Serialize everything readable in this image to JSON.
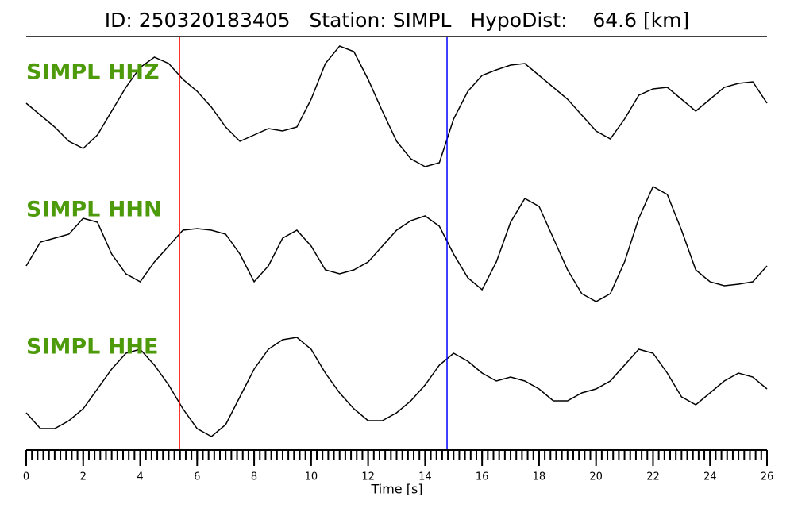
{
  "chart_data": {
    "type": "line",
    "title": "ID: 250320183405   Station: SIMPL   HypoDist:    64.6 [km]",
    "x_label": "Time [s]",
    "x": [
      0,
      0.5,
      1,
      1.5,
      2,
      2.5,
      3,
      3.5,
      4,
      4.5,
      5,
      5.5,
      6,
      6.5,
      7,
      7.5,
      8,
      8.5,
      9,
      9.5,
      10,
      10.5,
      11,
      11.5,
      12,
      12.5,
      13,
      13.5,
      14,
      14.5,
      15,
      15.5,
      16,
      16.5,
      17,
      17.5,
      18,
      18.5,
      19,
      19.5,
      20,
      20.5,
      21,
      21.5,
      22,
      22.5,
      23,
      23.5,
      24,
      24.5,
      25,
      25.5,
      26
    ],
    "series": [
      {
        "name": "SIMPL HHZ",
        "color": "#000000",
        "values": [
          7,
          -8,
          -23,
          -41,
          -50,
          -33,
          -3,
          27,
          52,
          65,
          57,
          37,
          22,
          2,
          -23,
          -41,
          -33,
          -25,
          -28,
          -23,
          12,
          57,
          79,
          72,
          37,
          -3,
          -41,
          -63,
          -73,
          -68,
          -13,
          22,
          42,
          49,
          55,
          57,
          42,
          27,
          12,
          -8,
          -28,
          -38,
          -13,
          17,
          25,
          27,
          12,
          -3,
          12,
          27,
          32,
          34,
          7
        ]
      },
      {
        "name": "SIMPL HHN",
        "color": "#000000",
        "values": [
          -25,
          5,
          10,
          15,
          35,
          30,
          -10,
          -35,
          -45,
          -20,
          0,
          20,
          22,
          20,
          15,
          -10,
          -45,
          -25,
          10,
          20,
          0,
          -30,
          -35,
          -30,
          -20,
          0,
          20,
          32,
          38,
          25,
          -10,
          -40,
          -55,
          -20,
          30,
          60,
          50,
          10,
          -30,
          -60,
          -70,
          -60,
          -20,
          35,
          75,
          65,
          20,
          -30,
          -45,
          -50,
          -48,
          -45,
          -25
        ]
      },
      {
        "name": "SIMPL HHE",
        "color": "#000000",
        "values": [
          -30,
          -50,
          -50,
          -40,
          -25,
          0,
          25,
          45,
          50,
          30,
          5,
          -25,
          -50,
          -60,
          -45,
          -10,
          25,
          50,
          62,
          65,
          50,
          20,
          -5,
          -25,
          -40,
          -40,
          -30,
          -15,
          5,
          30,
          45,
          35,
          20,
          10,
          15,
          10,
          0,
          -15,
          -15,
          -5,
          0,
          10,
          30,
          50,
          45,
          20,
          -10,
          -20,
          -5,
          10,
          20,
          15,
          0
        ]
      }
    ],
    "ylim": [
      -90,
      90
    ],
    "xlim": [
      0,
      26
    ],
    "xticks": [
      0,
      2,
      4,
      6,
      8,
      10,
      12,
      14,
      16,
      18,
      20,
      22,
      24,
      26
    ],
    "minor_tick_step": 0.2,
    "markers": [
      {
        "x": 5.38,
        "color": "#ff0000"
      },
      {
        "x": 14.77,
        "color": "#0000ff"
      }
    ]
  }
}
